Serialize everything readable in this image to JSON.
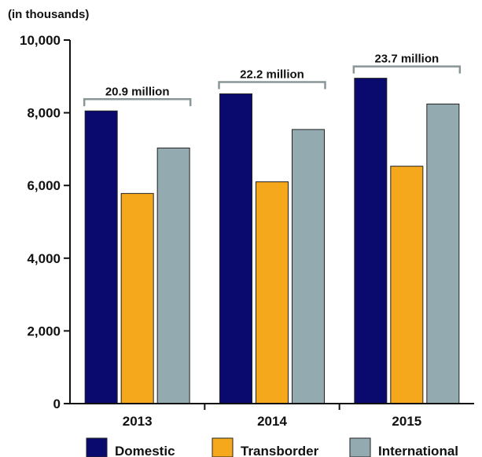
{
  "chart_data": {
    "type": "bar",
    "unit_label": "(in thousands)",
    "title": "",
    "xlabel": "",
    "ylabel": "",
    "ylim": [
      0,
      10000
    ],
    "yticks": [
      0,
      2000,
      4000,
      6000,
      8000,
      10000
    ],
    "ytick_labels": [
      "0",
      "2,000",
      "4,000",
      "6,000",
      "8,000",
      "10,000"
    ],
    "categories": [
      "2013",
      "2014",
      "2015"
    ],
    "series": [
      {
        "name": "Domestic",
        "color": "#0a0a6e",
        "values": [
          8050,
          8520,
          8950
        ]
      },
      {
        "name": "Transborder",
        "color": "#f5a81c",
        "values": [
          5780,
          6100,
          6530
        ]
      },
      {
        "name": "International",
        "color": "#93aab0",
        "values": [
          7030,
          7540,
          8240
        ]
      }
    ],
    "group_totals": [
      "20.9 million",
      "22.2 million",
      "23.7 million"
    ],
    "legend_position": "bottom",
    "grid": false
  }
}
